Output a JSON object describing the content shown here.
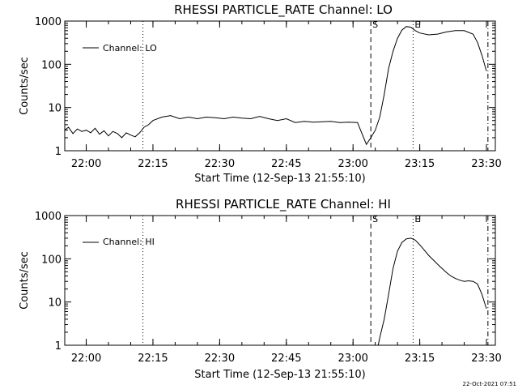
{
  "footer": {
    "timestamp": "22-Oct-2021 07:51"
  },
  "chart_data": [
    {
      "type": "line",
      "title": "RHESSI PARTICLE_RATE Channel: LO",
      "xlabel": "Start Time (12-Sep-13 21:55:10)",
      "ylabel": "Counts/sec",
      "y_scale": "log",
      "ylim": [
        1,
        1000
      ],
      "xlim": [
        "21:55:10",
        "23:32:00"
      ],
      "x_ticks": [
        "22:00",
        "22:15",
        "22:30",
        "22:45",
        "23:00",
        "23:15",
        "23:30"
      ],
      "y_ticks": [
        "1",
        "10",
        "100",
        "1000"
      ],
      "legend": {
        "position": "top-left",
        "entries": [
          "Channel: LO"
        ]
      },
      "grid": false,
      "markers": [
        {
          "time": "22:12:45",
          "label": "",
          "style": "dotted"
        },
        {
          "time": "23:04:00",
          "label": "S",
          "style": "dashed"
        },
        {
          "time": "23:13:30",
          "label": "E",
          "style": "dotted"
        },
        {
          "time": "23:30:20",
          "label": "",
          "style": "dash-dot"
        }
      ],
      "series": [
        {
          "name": "Channel: LO",
          "x": [
            "21:55:10",
            "21:56:00",
            "21:57:00",
            "21:58:00",
            "21:59:00",
            "22:00:00",
            "22:01:00",
            "22:02:00",
            "22:03:00",
            "22:04:00",
            "22:05:00",
            "22:06:00",
            "22:07:00",
            "22:08:00",
            "22:09:00",
            "22:10:00",
            "22:11:00",
            "22:12:00",
            "22:13:00",
            "22:14:00",
            "22:15:00",
            "22:17:00",
            "22:19:00",
            "22:21:00",
            "22:23:00",
            "22:25:00",
            "22:27:00",
            "22:29:00",
            "22:31:00",
            "22:33:00",
            "22:35:00",
            "22:37:00",
            "22:39:00",
            "22:41:00",
            "22:43:00",
            "22:45:00",
            "22:47:00",
            "22:49:00",
            "22:51:00",
            "22:53:00",
            "22:55:00",
            "22:57:00",
            "22:59:00",
            "23:01:00",
            "23:02:00",
            "23:03:00",
            "23:04:00",
            "23:05:00",
            "23:06:00",
            "23:07:00",
            "23:08:00",
            "23:09:00",
            "23:10:00",
            "23:11:00",
            "23:12:00",
            "23:13:00",
            "23:14:00",
            "23:15:00",
            "23:17:00",
            "23:19:00",
            "23:21:00",
            "23:23:00",
            "23:25:00",
            "23:27:00",
            "23:28:00",
            "23:29:00",
            "23:30:00"
          ],
          "values": [
            3,
            3.5,
            2.5,
            3.2,
            2.8,
            3,
            2.6,
            3.3,
            2.4,
            2.9,
            2.2,
            2.8,
            2.5,
            2,
            2.6,
            2.3,
            2.1,
            2.6,
            3.5,
            4,
            5,
            6,
            6.5,
            5.5,
            6,
            5.5,
            6,
            5.8,
            5.5,
            6,
            5.7,
            5.5,
            6.2,
            5.5,
            5,
            5.5,
            4.5,
            4.8,
            4.6,
            4.7,
            4.8,
            4.5,
            4.6,
            4.5,
            2.5,
            1.4,
            2,
            3,
            6,
            20,
            80,
            200,
            400,
            620,
            750,
            720,
            600,
            530,
            480,
            500,
            560,
            600,
            600,
            500,
            320,
            160,
            70
          ]
        }
      ]
    },
    {
      "type": "line",
      "title": "RHESSI PARTICLE_RATE Channel: HI",
      "xlabel": "Start Time (12-Sep-13 21:55:10)",
      "ylabel": "Counts/sec",
      "y_scale": "log",
      "ylim": [
        1,
        1000
      ],
      "xlim": [
        "21:55:10",
        "23:32:00"
      ],
      "x_ticks": [
        "22:00",
        "22:15",
        "22:30",
        "22:45",
        "23:00",
        "23:15",
        "23:30"
      ],
      "y_ticks": [
        "1",
        "10",
        "100",
        "1000"
      ],
      "legend": {
        "position": "top-left",
        "entries": [
          "Channel: HI"
        ]
      },
      "grid": false,
      "markers": [
        {
          "time": "22:12:45",
          "label": "",
          "style": "dotted"
        },
        {
          "time": "23:04:00",
          "label": "S",
          "style": "dashed"
        },
        {
          "time": "23:13:30",
          "label": "E",
          "style": "dotted"
        },
        {
          "time": "23:30:20",
          "label": "",
          "style": "dash-dot"
        }
      ],
      "series": [
        {
          "name": "Channel: HI",
          "x": [
            "23:05:40",
            "23:06:00",
            "23:07:00",
            "23:08:00",
            "23:09:00",
            "23:10:00",
            "23:11:00",
            "23:12:00",
            "23:13:00",
            "23:14:00",
            "23:15:00",
            "23:16:00",
            "23:17:00",
            "23:18:00",
            "23:19:00",
            "23:20:00",
            "23:21:00",
            "23:22:00",
            "23:23:00",
            "23:24:00",
            "23:25:00",
            "23:26:00",
            "23:27:00",
            "23:28:00",
            "23:29:00",
            "23:30:00"
          ],
          "values": [
            1,
            1.5,
            4,
            15,
            60,
            150,
            240,
            290,
            300,
            270,
            210,
            160,
            120,
            95,
            75,
            60,
            48,
            40,
            35,
            32,
            30,
            31,
            30,
            26,
            15,
            7
          ]
        }
      ]
    }
  ]
}
